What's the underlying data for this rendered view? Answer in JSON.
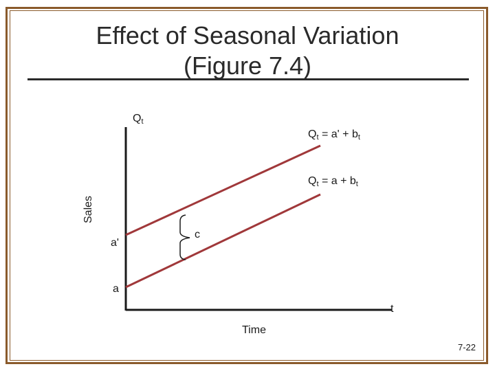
{
  "title_line1": "Effect of Seasonal Variation",
  "title_line2": "(Figure 7.4)",
  "y_axis_top_label": {
    "main": "Q",
    "sub": "t"
  },
  "y_axis_label": "Sales",
  "x_axis_label": "Time",
  "x_axis_end_label": "t",
  "upper_line_label": {
    "q": "Q",
    "q_sub": "t",
    "rhs": " = a' + b",
    "b_sub": "t"
  },
  "lower_line_label": {
    "q": "Q",
    "q_sub": "t",
    "rhs": " = a + b",
    "b_sub": "t"
  },
  "intercept_upper": "a'",
  "intercept_lower": "a",
  "brace_label": "c",
  "slide_number": "7-22",
  "colors": {
    "frame": "#8a5a2b",
    "lines": "#a0383a",
    "axes": "#1a1a1a"
  }
}
